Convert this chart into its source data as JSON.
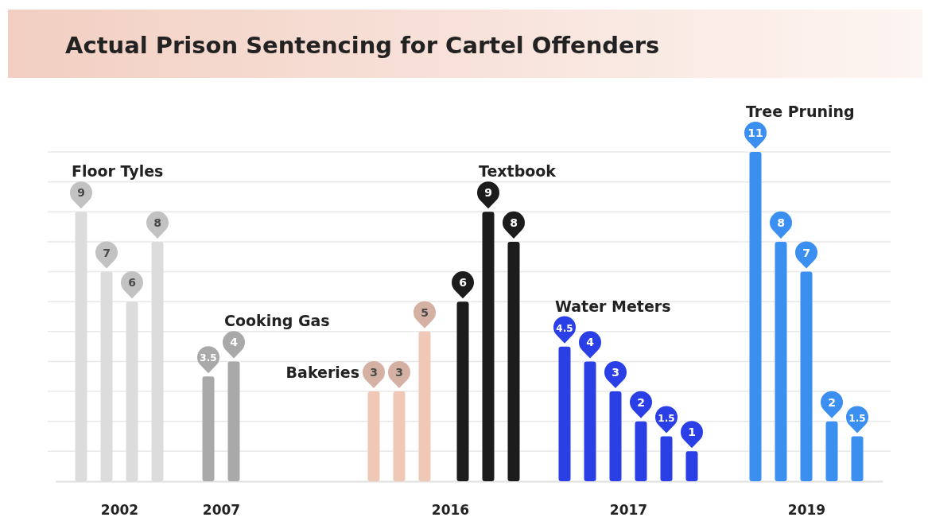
{
  "chart_data": {
    "type": "bar",
    "title": "Actual Prison Sentencing for Cartel Offenders",
    "categories": [
      null,
      null,
      null,
      null,
      null,
      "2002",
      null,
      null,
      null,
      null,
      null,
      null,
      null,
      "2007",
      null,
      null,
      null,
      null,
      null,
      null,
      null,
      null,
      null,
      null,
      null,
      null,
      null,
      null,
      null,
      null,
      null,
      "2016",
      null,
      null,
      null,
      null,
      null,
      null,
      null,
      null,
      null,
      null,
      null,
      null,
      null,
      "2017",
      null,
      null,
      null,
      null,
      null,
      null,
      null,
      null,
      null,
      null,
      null,
      null,
      null,
      "2019",
      null,
      null,
      null,
      null,
      null,
      null
    ],
    "ylim": [
      0,
      11
    ],
    "yticks": [
      {
        "value": 1,
        "label": null
      },
      {
        "value": 2,
        "label": null
      },
      {
        "value": 3,
        "label": null
      },
      {
        "value": 4,
        "label": null
      },
      {
        "value": 5,
        "label": null
      },
      {
        "value": 6,
        "label": null
      },
      {
        "value": 7,
        "label": null
      },
      {
        "value": 8,
        "label": null
      },
      {
        "value": 9,
        "label": null
      },
      {
        "value": 10,
        "label": null
      },
      {
        "value": 11,
        "label": null
      }
    ],
    "grid": "y",
    "tick_labels": "x",
    "data_labels": true,
    "series": [
      {
        "name": "Floor Tyles",
        "color": "#dcdcdc",
        "values": [
          null,
          null,
          9,
          null,
          7,
          null,
          6,
          null,
          8,
          null,
          null,
          null,
          null,
          null,
          null,
          null,
          null,
          null,
          null,
          null,
          null,
          null,
          null,
          null,
          null,
          null,
          null,
          null,
          null,
          null,
          null,
          null,
          null,
          null,
          null,
          null,
          null,
          null,
          null,
          null,
          null,
          null,
          null,
          null,
          null,
          null,
          null,
          null,
          null,
          null,
          null,
          null,
          null,
          null,
          null,
          null,
          null,
          null,
          null,
          null,
          null,
          null,
          null,
          null,
          null,
          null
        ]
      },
      {
        "name": "Cooking Gas",
        "color": "#a9a9a9",
        "values": [
          null,
          null,
          null,
          null,
          null,
          null,
          null,
          null,
          null,
          null,
          null,
          null,
          3.5,
          null,
          4,
          null,
          null,
          null,
          null,
          null,
          null,
          null,
          null,
          null,
          null,
          null,
          null,
          null,
          null,
          null,
          null,
          null,
          null,
          null,
          null,
          null,
          null,
          null,
          null,
          null,
          null,
          null,
          null,
          null,
          null,
          null,
          null,
          null,
          null,
          null,
          null,
          null,
          null,
          null,
          null,
          null,
          null,
          null,
          null,
          null,
          null,
          null,
          null,
          null,
          null,
          null
        ]
      },
      {
        "name": "Bakeries",
        "color": "#f0c8b8",
        "values": [
          null,
          null,
          null,
          null,
          null,
          null,
          null,
          null,
          null,
          null,
          null,
          null,
          null,
          null,
          null,
          null,
          null,
          null,
          null,
          null,
          null,
          null,
          null,
          null,
          null,
          3,
          null,
          3,
          null,
          5,
          null,
          null,
          null,
          null,
          null,
          null,
          null,
          null,
          null,
          null,
          null,
          null,
          null,
          null,
          null,
          null,
          null,
          null,
          null,
          null,
          null,
          null,
          null,
          null,
          null,
          null,
          null,
          null,
          null,
          null,
          null,
          null,
          null,
          null,
          null,
          null
        ]
      },
      {
        "name": "Textbook",
        "color": "#1c1c1c",
        "values": [
          null,
          null,
          null,
          null,
          null,
          null,
          null,
          null,
          null,
          null,
          null,
          null,
          null,
          null,
          null,
          null,
          null,
          null,
          null,
          null,
          null,
          null,
          null,
          null,
          null,
          null,
          null,
          null,
          null,
          null,
          null,
          null,
          6,
          null,
          9,
          null,
          8,
          null,
          null,
          null,
          null,
          null,
          null,
          null,
          null,
          null,
          null,
          null,
          null,
          null,
          null,
          null,
          null,
          null,
          null,
          null,
          null,
          null,
          null,
          null,
          null,
          null,
          null,
          null,
          null,
          null
        ]
      },
      {
        "name": "Water Meters",
        "color": "#2b3fe6",
        "values": [
          null,
          null,
          null,
          null,
          null,
          null,
          null,
          null,
          null,
          null,
          null,
          null,
          null,
          null,
          null,
          null,
          null,
          null,
          null,
          null,
          null,
          null,
          null,
          null,
          null,
          null,
          null,
          null,
          null,
          null,
          null,
          null,
          null,
          null,
          null,
          null,
          null,
          null,
          null,
          null,
          4.5,
          null,
          4,
          null,
          3,
          null,
          2,
          null,
          1.5,
          null,
          1,
          null,
          null,
          null,
          null,
          null,
          null,
          null,
          null,
          null,
          null,
          null,
          null,
          null,
          null,
          null
        ]
      },
      {
        "name": "Tree Pruning",
        "color": "#3a8ff0",
        "values": [
          null,
          null,
          null,
          null,
          null,
          null,
          null,
          null,
          null,
          null,
          null,
          null,
          null,
          null,
          null,
          null,
          null,
          null,
          null,
          null,
          null,
          null,
          null,
          null,
          null,
          null,
          null,
          null,
          null,
          null,
          null,
          null,
          null,
          null,
          null,
          null,
          null,
          null,
          null,
          null,
          null,
          null,
          null,
          null,
          null,
          null,
          null,
          null,
          null,
          null,
          null,
          null,
          null,
          null,
          null,
          11,
          null,
          8,
          null,
          7,
          null,
          2,
          null,
          1.5,
          null,
          null
        ]
      }
    ]
  }
}
